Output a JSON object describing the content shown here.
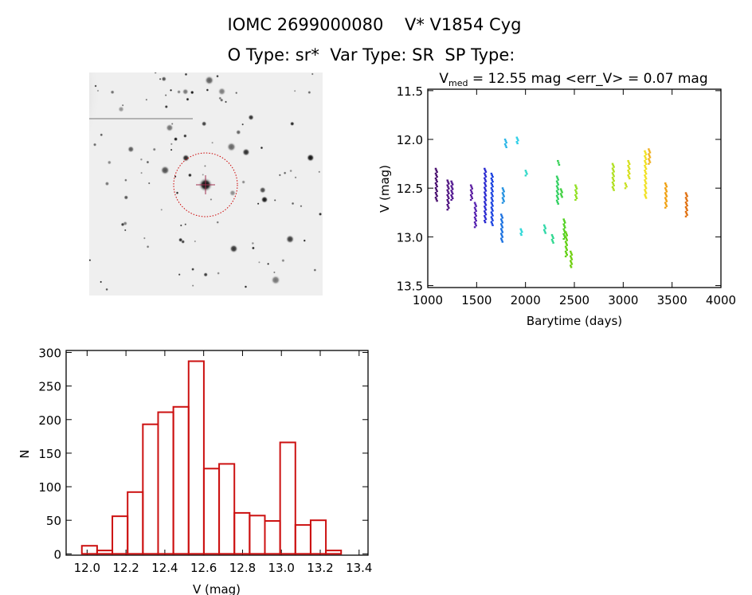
{
  "header": {
    "title_line1": "IOMC 2699000080    V* V1854 Cyg",
    "title_line2": "O Type: sr*  Var Type: SR  SP Type:"
  },
  "chart_data": [
    {
      "type": "image",
      "description_label": "finder chart",
      "target_marker_color": "#cc0000"
    },
    {
      "type": "scatter",
      "title_prefix": "V",
      "title_subscript": "med",
      "title_rest": " = 12.55 mag <err_V> = 0.07 mag",
      "xlabel": "Barytime (days)",
      "ylabel": "V (mag)",
      "xlim": [
        1000,
        4000
      ],
      "ylim": [
        13.52,
        11.485
      ],
      "y_reversed": true,
      "xticks": [
        1000,
        1500,
        2000,
        2500,
        3000,
        3500,
        4000
      ],
      "xtick_labels": [
        "1000",
        "1500",
        "2000",
        "2500",
        "3000",
        "3500",
        "4000"
      ],
      "yticks": [
        11.5,
        12.0,
        12.5,
        13.0,
        13.5
      ],
      "ytick_labels": [
        "11.5",
        "12.0",
        "12.5",
        "13.0",
        "13.5"
      ],
      "grid": false,
      "segments": [
        {
          "t": 1090,
          "vmin": 12.3,
          "vmax": 12.63,
          "color": "#4a1070"
        },
        {
          "t": 1210,
          "vmin": 12.42,
          "vmax": 12.72,
          "color": "#501480"
        },
        {
          "t": 1250,
          "vmin": 12.43,
          "vmax": 12.62,
          "color": "#521890"
        },
        {
          "t": 1450,
          "vmin": 12.47,
          "vmax": 12.62,
          "color": "#5a1ca0"
        },
        {
          "t": 1490,
          "vmin": 12.65,
          "vmax": 12.9,
          "color": "#5420b0"
        },
        {
          "t": 1590,
          "vmin": 12.3,
          "vmax": 12.85,
          "color": "#2828d0"
        },
        {
          "t": 1660,
          "vmin": 12.35,
          "vmax": 12.88,
          "color": "#1840e0"
        },
        {
          "t": 1760,
          "vmin": 12.77,
          "vmax": 13.05,
          "color": "#1a70e0"
        },
        {
          "t": 1775,
          "vmin": 12.5,
          "vmax": 12.65,
          "color": "#2090e0"
        },
        {
          "t": 1800,
          "vmin": 12.0,
          "vmax": 12.08,
          "color": "#30b8e8"
        },
        {
          "t": 1920,
          "vmin": 11.98,
          "vmax": 12.04,
          "color": "#30d0e8"
        },
        {
          "t": 1960,
          "vmin": 12.92,
          "vmax": 12.98,
          "color": "#30d8d8"
        },
        {
          "t": 2010,
          "vmin": 12.32,
          "vmax": 12.37,
          "color": "#30d8c8"
        },
        {
          "t": 2200,
          "vmin": 12.88,
          "vmax": 12.96,
          "color": "#30d8a8"
        },
        {
          "t": 2280,
          "vmin": 12.98,
          "vmax": 13.06,
          "color": "#30d890"
        },
        {
          "t": 2330,
          "vmin": 12.38,
          "vmax": 12.66,
          "color": "#30d060"
        },
        {
          "t": 2340,
          "vmin": 12.22,
          "vmax": 12.26,
          "color": "#30d050"
        },
        {
          "t": 2370,
          "vmin": 12.51,
          "vmax": 12.59,
          "color": "#40d040"
        },
        {
          "t": 2400,
          "vmin": 12.82,
          "vmax": 13.02,
          "color": "#50d020"
        },
        {
          "t": 2420,
          "vmin": 12.95,
          "vmax": 13.2,
          "color": "#60d010"
        },
        {
          "t": 2470,
          "vmin": 13.15,
          "vmax": 13.31,
          "color": "#70d010"
        },
        {
          "t": 2520,
          "vmin": 12.47,
          "vmax": 12.62,
          "color": "#90e020"
        },
        {
          "t": 2900,
          "vmin": 12.25,
          "vmax": 12.52,
          "color": "#b0e020"
        },
        {
          "t": 3030,
          "vmin": 12.45,
          "vmax": 12.5,
          "color": "#c8e020"
        },
        {
          "t": 3060,
          "vmin": 12.22,
          "vmax": 12.4,
          "color": "#d8e020"
        },
        {
          "t": 3230,
          "vmin": 12.12,
          "vmax": 12.6,
          "color": "#f0e020"
        },
        {
          "t": 3270,
          "vmin": 12.1,
          "vmax": 12.25,
          "color": "#f0b020"
        },
        {
          "t": 3440,
          "vmin": 12.45,
          "vmax": 12.7,
          "color": "#f0a010"
        },
        {
          "t": 3650,
          "vmin": 12.55,
          "vmax": 12.79,
          "color": "#e07010"
        }
      ]
    },
    {
      "type": "bar",
      "subtype": "histogram",
      "xlabel": "V (mag)",
      "ylabel": "N",
      "xlim": [
        11.892,
        13.446
      ],
      "ylim": [
        -2,
        303
      ],
      "xticks": [
        12.0,
        12.2,
        12.4,
        12.6,
        12.8,
        13.0,
        13.2,
        13.4
      ],
      "xtick_labels": [
        "12.0",
        "12.2",
        "12.4",
        "12.6",
        "12.8",
        "13.0",
        "13.2",
        "13.4"
      ],
      "yticks": [
        0,
        50,
        100,
        150,
        200,
        250,
        300
      ],
      "ytick_labels": [
        "0",
        "50",
        "100",
        "150",
        "200",
        "250",
        "300"
      ],
      "bin_start": 11.973,
      "bin_width": 0.0785,
      "values": [
        12,
        5,
        56,
        92,
        193,
        211,
        219,
        287,
        127,
        134,
        61,
        57,
        49,
        166,
        43,
        50,
        5
      ],
      "bar_color": "#cc1111",
      "grid": false
    }
  ]
}
